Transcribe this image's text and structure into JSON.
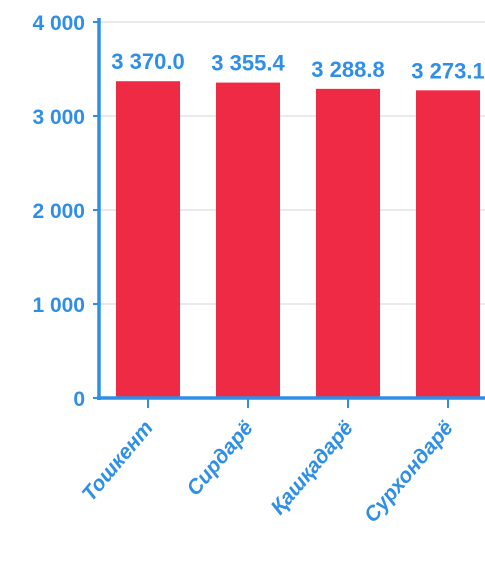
{
  "colors": {
    "bar": "#ee2a45",
    "axis": "#2f8fe6",
    "text": "#2f8fe6",
    "grid": "#e3e3e3"
  },
  "chart_data": {
    "type": "bar",
    "title": "",
    "xlabel": "",
    "ylabel": "",
    "categories": [
      "Тошкент",
      "Сирдарё",
      "Қашқадарё",
      "Сурхондарё"
    ],
    "values": [
      3370.0,
      3355.4,
      3288.8,
      3273.1
    ],
    "value_labels": [
      "3 370.0",
      "3 355.4",
      "3 288.8",
      "3 273.1"
    ],
    "ylim": [
      0,
      4000
    ],
    "yticks": [
      0,
      1000,
      2000,
      3000,
      4000
    ],
    "ytick_labels": [
      "0",
      "1 000",
      "2 000",
      "3 000",
      "4 000"
    ],
    "grid": true,
    "legend": "none"
  }
}
